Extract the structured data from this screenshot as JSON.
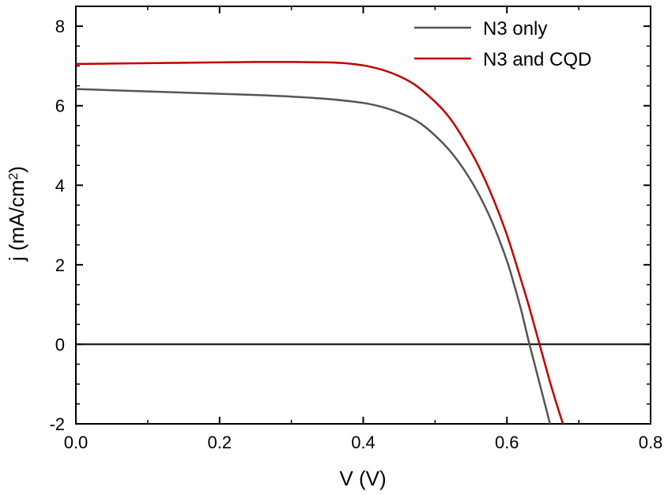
{
  "chart_data": {
    "type": "line",
    "xlabel": "V (V)",
    "ylabel_parts": {
      "main": "j (mA/cm",
      "sup": "2",
      "end": ")"
    },
    "xlim": [
      0.0,
      0.8
    ],
    "ylim": [
      -2,
      8.5
    ],
    "x_ticks": [
      "0.0",
      "0.2",
      "0.4",
      "0.6",
      "0.8"
    ],
    "y_ticks": [
      "-2",
      "0",
      "2",
      "4",
      "6",
      "8"
    ],
    "x_tick_values": [
      0.0,
      0.2,
      0.4,
      0.6,
      0.8
    ],
    "y_tick_values": [
      -2,
      0,
      2,
      4,
      6,
      8
    ],
    "legend_position": "top-right",
    "zero_line": true,
    "series": [
      {
        "name": "N3 only",
        "color": "#555555",
        "points": [
          [
            0.0,
            6.42
          ],
          [
            0.05,
            6.39
          ],
          [
            0.1,
            6.36
          ],
          [
            0.15,
            6.33
          ],
          [
            0.2,
            6.3
          ],
          [
            0.25,
            6.27
          ],
          [
            0.3,
            6.23
          ],
          [
            0.35,
            6.17
          ],
          [
            0.4,
            6.07
          ],
          [
            0.43,
            5.95
          ],
          [
            0.46,
            5.75
          ],
          [
            0.48,
            5.55
          ],
          [
            0.5,
            5.25
          ],
          [
            0.52,
            4.88
          ],
          [
            0.54,
            4.4
          ],
          [
            0.56,
            3.8
          ],
          [
            0.58,
            3.05
          ],
          [
            0.6,
            2.1
          ],
          [
            0.61,
            1.5
          ],
          [
            0.62,
            0.85
          ],
          [
            0.63,
            0.1
          ],
          [
            0.64,
            -0.6
          ],
          [
            0.65,
            -1.3
          ],
          [
            0.66,
            -2.0
          ]
        ]
      },
      {
        "name": "N3 and CQD",
        "color": "#c00000",
        "points": [
          [
            0.0,
            7.05
          ],
          [
            0.05,
            7.06
          ],
          [
            0.1,
            7.07
          ],
          [
            0.15,
            7.08
          ],
          [
            0.2,
            7.09
          ],
          [
            0.25,
            7.1
          ],
          [
            0.3,
            7.1
          ],
          [
            0.35,
            7.09
          ],
          [
            0.38,
            7.06
          ],
          [
            0.41,
            6.98
          ],
          [
            0.44,
            6.82
          ],
          [
            0.47,
            6.55
          ],
          [
            0.5,
            6.1
          ],
          [
            0.52,
            5.7
          ],
          [
            0.54,
            5.15
          ],
          [
            0.56,
            4.5
          ],
          [
            0.58,
            3.7
          ],
          [
            0.6,
            2.75
          ],
          [
            0.62,
            1.6
          ],
          [
            0.63,
            1.0
          ],
          [
            0.64,
            0.35
          ],
          [
            0.65,
            -0.3
          ],
          [
            0.66,
            -0.95
          ],
          [
            0.67,
            -1.55
          ],
          [
            0.678,
            -2.0
          ]
        ]
      }
    ]
  }
}
